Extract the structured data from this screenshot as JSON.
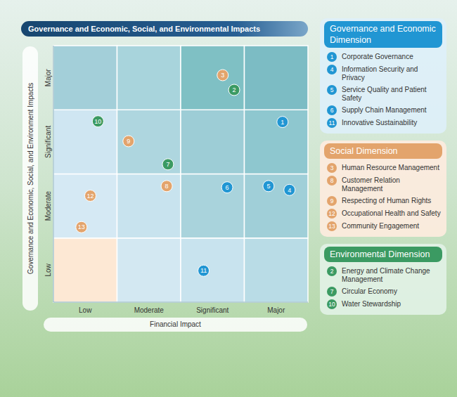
{
  "chart_data": {
    "type": "scatter",
    "title": "Governance and Economic, Social, and Environmental Impacts",
    "x_label": "Financial Impact",
    "y_label": "Governance and Economic, Social, and Environment Impacts",
    "xlim": [
      0,
      4
    ],
    "ylim": [
      0,
      4
    ],
    "xticks": [
      {
        "value": 0.5,
        "label": "Low"
      },
      {
        "value": 1.5,
        "label": "Moderate"
      },
      {
        "value": 2.5,
        "label": "Significant"
      },
      {
        "value": 3.5,
        "label": "Major"
      }
    ],
    "yticks": [
      {
        "value": 0.5,
        "label": "Low"
      },
      {
        "value": 1.5,
        "label": "Moderate"
      },
      {
        "value": 2.5,
        "label": "Significant"
      },
      {
        "value": 3.5,
        "label": "Major"
      }
    ],
    "grid": true,
    "legend": "right",
    "marker": "circle",
    "series": [
      {
        "name": "Governance and Economic Dimension",
        "color": "#2196d3",
        "values": [
          {
            "id": 1,
            "label": "Corporate Governance",
            "x": 3.6,
            "y": 2.81
          },
          {
            "id": 4,
            "label": "Information Security and Privacy",
            "x": 3.71,
            "y": 1.75
          },
          {
            "id": 5,
            "label": "Service Quality and Patient Safety",
            "x": 3.38,
            "y": 1.81
          },
          {
            "id": 6,
            "label": "Supply Chain Management",
            "x": 2.73,
            "y": 1.79
          },
          {
            "id": 11,
            "label": "Innovative Sustainability",
            "x": 2.36,
            "y": 0.49
          }
        ]
      },
      {
        "name": "Social Dimension",
        "color": "#e3a46c",
        "values": [
          {
            "id": 3,
            "label": "Human Resource Management",
            "x": 2.66,
            "y": 3.54
          },
          {
            "id": 8,
            "label": "Customer Relation Management",
            "x": 1.78,
            "y": 1.81
          },
          {
            "id": 9,
            "label": "Respecting of Human Rights",
            "x": 1.18,
            "y": 2.51
          },
          {
            "id": 12,
            "label": "Occupational Health and Safety",
            "x": 0.58,
            "y": 1.66
          },
          {
            "id": 13,
            "label": "Community Engagement",
            "x": 0.44,
            "y": 1.17
          }
        ]
      },
      {
        "name": "Environmental Dimension",
        "color": "#3b9a62",
        "values": [
          {
            "id": 2,
            "label": "Energy and Climate Change Management",
            "x": 2.84,
            "y": 3.31
          },
          {
            "id": 7,
            "label": "Circular Economy",
            "x": 1.8,
            "y": 2.15
          },
          {
            "id": 10,
            "label": "Water Stewardship",
            "x": 0.7,
            "y": 2.82
          }
        ]
      }
    ]
  }
}
